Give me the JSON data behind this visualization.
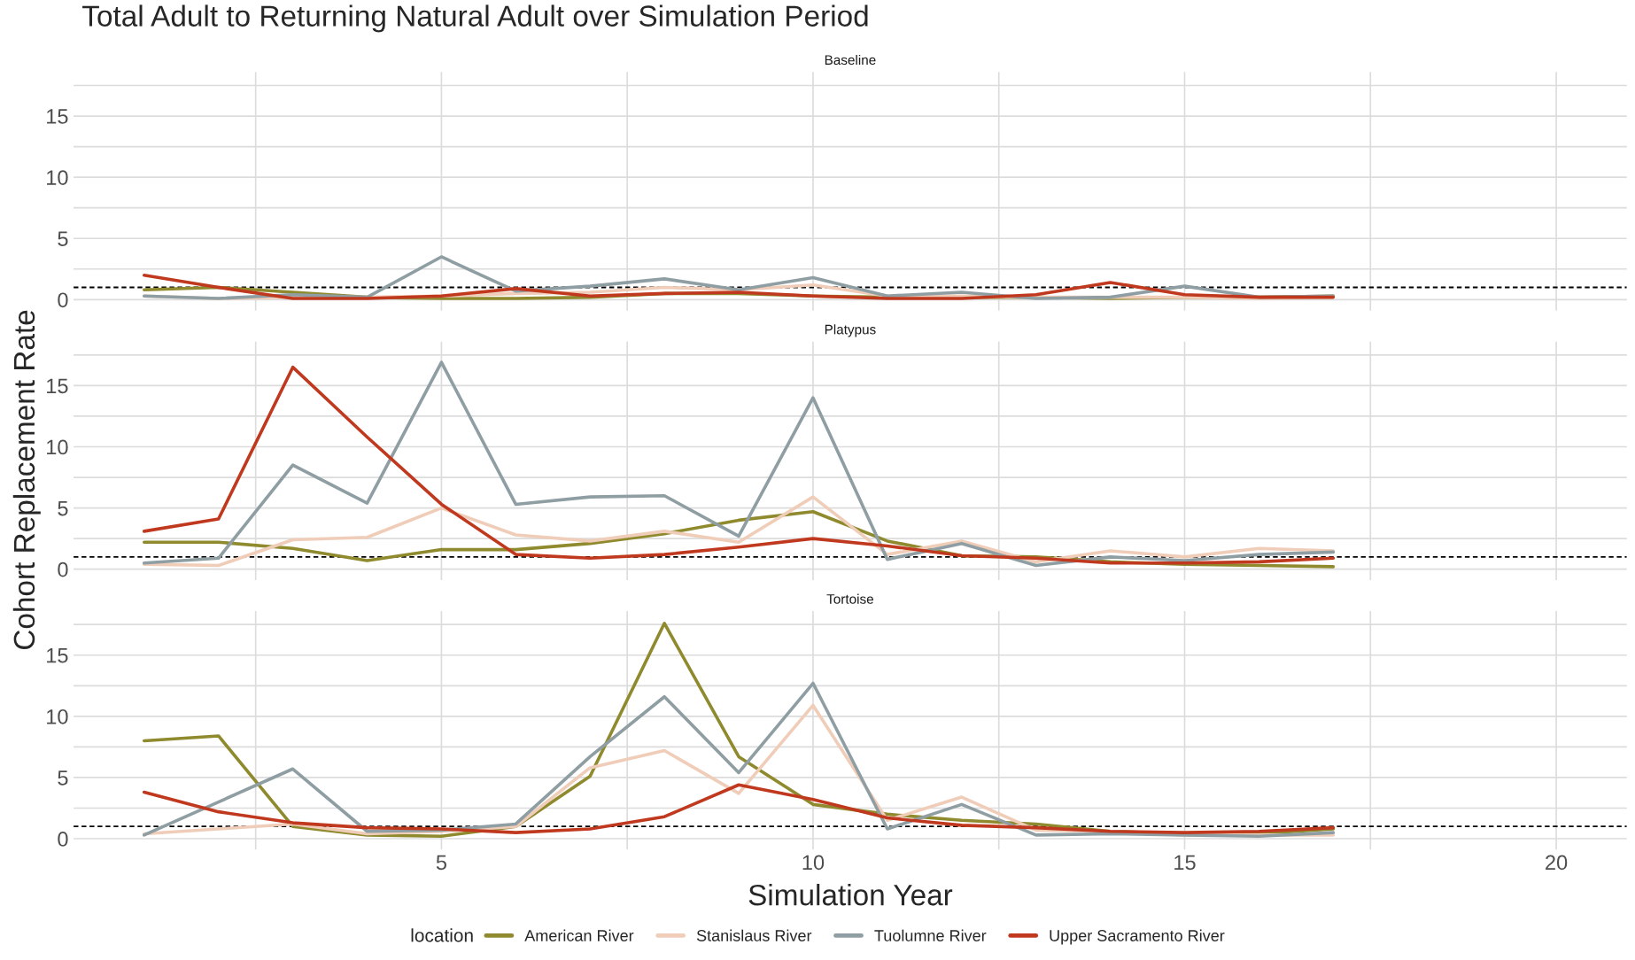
{
  "chart_data": [
    {
      "type": "line",
      "title": "Total Adult to Returning Natural Adult over Simulation Period",
      "subtitle": "Baseline",
      "x": [
        1,
        2,
        3,
        4,
        5,
        6,
        7,
        8,
        9,
        10,
        11,
        12,
        13,
        14,
        15,
        16,
        17
      ],
      "series": [
        {
          "color": "#8f8a2e",
          "values": [
            0.8,
            1.0,
            0.6,
            0.2,
            0.1,
            0.1,
            0.2,
            0.5,
            0.5,
            0.3,
            0.2,
            0.2,
            0.2,
            0.1,
            0.2,
            0.2,
            0.3
          ]
        },
        {
          "color": "#f0cdb8",
          "values": [
            0.3,
            0.1,
            0.2,
            0.2,
            0.3,
            0.5,
            0.6,
            1.0,
            0.8,
            1.2,
            0.3,
            0.3,
            0.2,
            0.2,
            0.2,
            0.1,
            0.2
          ]
        },
        {
          "color": "#8f9ea3",
          "values": [
            0.3,
            0.1,
            0.4,
            0.2,
            3.5,
            0.7,
            1.1,
            1.7,
            0.8,
            1.8,
            0.3,
            0.6,
            0.1,
            0.2,
            1.1,
            0.2,
            0.3
          ]
        },
        {
          "color": "#c0391f",
          "values": [
            2.0,
            1.0,
            0.1,
            0.1,
            0.3,
            0.9,
            0.3,
            0.5,
            0.6,
            0.3,
            0.1,
            0.1,
            0.4,
            1.4,
            0.4,
            0.2,
            0.2
          ]
        }
      ],
      "ref_lines": [
        {
          "axis": "y",
          "value": 1,
          "color": "#000000",
          "line_style": "dashed"
        }
      ],
      "xlim": [
        0.05,
        20.95
      ],
      "xticks": [
        {
          "value": 2.5,
          "label": null
        },
        5,
        {
          "value": 7.5,
          "label": null
        },
        10,
        {
          "value": 12.5,
          "label": null
        },
        15,
        {
          "value": 17.5,
          "label": null
        },
        20
      ],
      "ylim": [
        -0.89,
        18.6
      ],
      "yticks": [
        0,
        {
          "value": 2.5,
          "label": null
        },
        5,
        {
          "value": 7.5,
          "label": null
        },
        10,
        {
          "value": 12.5,
          "label": null
        },
        15,
        {
          "value": 17.5,
          "label": null
        }
      ],
      "tick_labels": "y",
      "grid": true,
      "line_style": "solid"
    },
    {
      "type": "line",
      "subtitle": "Platypus",
      "ylabel": "Cohort Replacement Rate",
      "x": [
        1,
        2,
        3,
        4,
        5,
        6,
        7,
        8,
        9,
        10,
        11,
        12,
        13,
        14,
        15,
        16,
        17
      ],
      "series": [
        {
          "color": "#8f8a2e",
          "values": [
            2.2,
            2.2,
            1.7,
            0.7,
            1.6,
            1.6,
            2.1,
            2.9,
            4.0,
            4.7,
            2.3,
            1.1,
            1.0,
            0.6,
            0.4,
            0.3,
            0.2
          ]
        },
        {
          "color": "#f0cdb8",
          "values": [
            0.4,
            0.3,
            2.4,
            2.6,
            5.0,
            2.8,
            2.3,
            3.1,
            2.2,
            5.9,
            1.2,
            2.3,
            0.6,
            1.5,
            1.0,
            1.7,
            1.5
          ]
        },
        {
          "color": "#8f9ea3",
          "values": [
            0.5,
            0.9,
            8.5,
            5.4,
            16.9,
            5.3,
            5.9,
            6.0,
            2.7,
            14.0,
            0.8,
            2.1,
            0.3,
            1.0,
            0.7,
            1.2,
            1.4
          ]
        },
        {
          "color": "#c0391f",
          "values": [
            3.1,
            4.1,
            16.5,
            10.8,
            5.3,
            1.2,
            0.9,
            1.2,
            1.8,
            2.5,
            1.9,
            1.1,
            0.9,
            0.5,
            0.5,
            0.6,
            0.9
          ]
        }
      ],
      "ref_lines": [
        {
          "axis": "y",
          "value": 1,
          "color": "#000000",
          "line_style": "dashed"
        }
      ],
      "xlim": [
        0.05,
        20.95
      ],
      "xticks": [
        {
          "value": 2.5,
          "label": null
        },
        5,
        {
          "value": 7.5,
          "label": null
        },
        10,
        {
          "value": 12.5,
          "label": null
        },
        15,
        {
          "value": 17.5,
          "label": null
        },
        20
      ],
      "ylim": [
        -0.89,
        18.6
      ],
      "yticks": [
        0,
        {
          "value": 2.5,
          "label": null
        },
        5,
        {
          "value": 7.5,
          "label": null
        },
        10,
        {
          "value": 12.5,
          "label": null
        },
        15,
        {
          "value": 17.5,
          "label": null
        }
      ],
      "tick_labels": "y",
      "grid": true,
      "line_style": "solid"
    },
    {
      "type": "line",
      "subtitle": "Tortoise",
      "xlabel": "Simulation Year",
      "legend_title": "location",
      "x": [
        1,
        2,
        3,
        4,
        5,
        6,
        7,
        8,
        9,
        10,
        11,
        12,
        13,
        14,
        15,
        16,
        17
      ],
      "series": [
        {
          "name": "American River",
          "color": "#8f8a2e",
          "values": [
            8.0,
            8.4,
            1.0,
            0.3,
            0.2,
            1.0,
            5.1,
            17.6,
            6.7,
            2.8,
            2.0,
            1.5,
            1.2,
            0.6,
            0.4,
            0.4,
            0.8
          ]
        },
        {
          "name": "Stanislaus River",
          "color": "#f0cdb8",
          "values": [
            0.4,
            0.8,
            1.2,
            0.4,
            0.6,
            1.0,
            5.8,
            7.2,
            3.7,
            10.9,
            1.5,
            3.4,
            0.7,
            0.6,
            0.3,
            0.3,
            0.3
          ]
        },
        {
          "name": "Tuolumne River",
          "color": "#8f9ea3",
          "values": [
            0.3,
            3.0,
            5.7,
            0.6,
            0.7,
            1.2,
            6.7,
            11.6,
            5.4,
            12.7,
            0.8,
            2.8,
            0.3,
            0.4,
            0.3,
            0.2,
            0.5
          ]
        },
        {
          "name": "Upper Sacramento River",
          "color": "#c0391f",
          "values": [
            3.8,
            2.2,
            1.3,
            0.9,
            0.8,
            0.5,
            0.8,
            1.8,
            4.4,
            3.2,
            1.7,
            1.1,
            0.9,
            0.6,
            0.5,
            0.6,
            0.9
          ]
        }
      ],
      "ref_lines": [
        {
          "axis": "y",
          "value": 1,
          "color": "#000000",
          "line_style": "dashed"
        }
      ],
      "xlim": [
        0.05,
        20.95
      ],
      "xticks": [
        {
          "value": 2.5,
          "label": null
        },
        5,
        {
          "value": 7.5,
          "label": null
        },
        10,
        {
          "value": 12.5,
          "label": null
        },
        15,
        {
          "value": 17.5,
          "label": null
        },
        20
      ],
      "ylim": [
        -0.89,
        18.6
      ],
      "yticks": [
        0,
        {
          "value": 2.5,
          "label": null
        },
        5,
        {
          "value": 7.5,
          "label": null
        },
        10,
        {
          "value": 12.5,
          "label": null
        },
        15,
        {
          "value": 17.5,
          "label": null
        }
      ],
      "grid": true,
      "line_style": "solid",
      "legend": "bottom"
    }
  ]
}
